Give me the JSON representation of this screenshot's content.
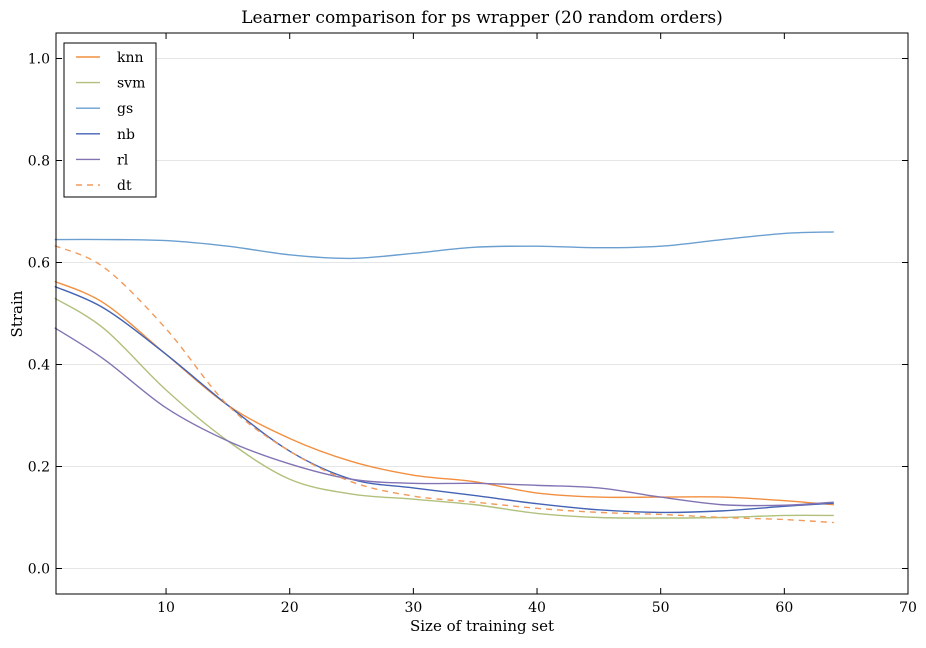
{
  "chart_data": {
    "type": "line",
    "title": "Learner comparison for ps wrapper (20 random orders)",
    "xlabel": "Size of training set",
    "ylabel": "Strain",
    "xlim": [
      1.1,
      70
    ],
    "ylim": [
      -0.05,
      1.05
    ],
    "xticks": [
      10,
      20,
      30,
      40,
      50,
      60,
      70
    ],
    "yticks": [
      0.0,
      0.2,
      0.4,
      0.6,
      0.8,
      1.0
    ],
    "xtick_labels": [
      "10",
      "20",
      "30",
      "40",
      "50",
      "60",
      "70"
    ],
    "ytick_labels": [
      "0.0",
      "0.2",
      "0.4",
      "0.6",
      "0.8",
      "1.0"
    ],
    "grid": "horizontal",
    "legend_position": "top-left",
    "x": [
      1,
      5,
      10,
      15,
      20,
      25,
      30,
      35,
      40,
      45,
      50,
      55,
      60,
      64
    ],
    "series": [
      {
        "name": "knn",
        "color": "#f28e3f",
        "dashed": false,
        "values": [
          0.563,
          0.52,
          0.42,
          0.32,
          0.255,
          0.21,
          0.183,
          0.17,
          0.148,
          0.14,
          0.14,
          0.14,
          0.133,
          0.125
        ]
      },
      {
        "name": "svm",
        "color": "#b1c07c",
        "dashed": false,
        "values": [
          0.53,
          0.47,
          0.35,
          0.25,
          0.175,
          0.146,
          0.136,
          0.125,
          0.108,
          0.1,
          0.099,
          0.1,
          0.104,
          0.104
        ]
      },
      {
        "name": "gs",
        "color": "#6a9fd0",
        "dashed": false,
        "values": [
          0.645,
          0.645,
          0.643,
          0.632,
          0.615,
          0.608,
          0.618,
          0.63,
          0.632,
          0.629,
          0.632,
          0.645,
          0.657,
          0.66
        ]
      },
      {
        "name": "nb",
        "color": "#4463b4",
        "dashed": false,
        "values": [
          0.553,
          0.51,
          0.42,
          0.32,
          0.23,
          0.175,
          0.158,
          0.143,
          0.127,
          0.115,
          0.11,
          0.113,
          0.122,
          0.128
        ]
      },
      {
        "name": "rl",
        "color": "#8274b4",
        "dashed": false,
        "values": [
          0.472,
          0.41,
          0.315,
          0.25,
          0.205,
          0.175,
          0.167,
          0.167,
          0.163,
          0.158,
          0.14,
          0.125,
          0.124,
          0.13
        ]
      },
      {
        "name": "dt",
        "color": "#f29a5a",
        "dashed": true,
        "values": [
          0.633,
          0.59,
          0.47,
          0.32,
          0.23,
          0.17,
          0.142,
          0.13,
          0.118,
          0.11,
          0.106,
          0.1,
          0.096,
          0.09
        ]
      }
    ]
  }
}
